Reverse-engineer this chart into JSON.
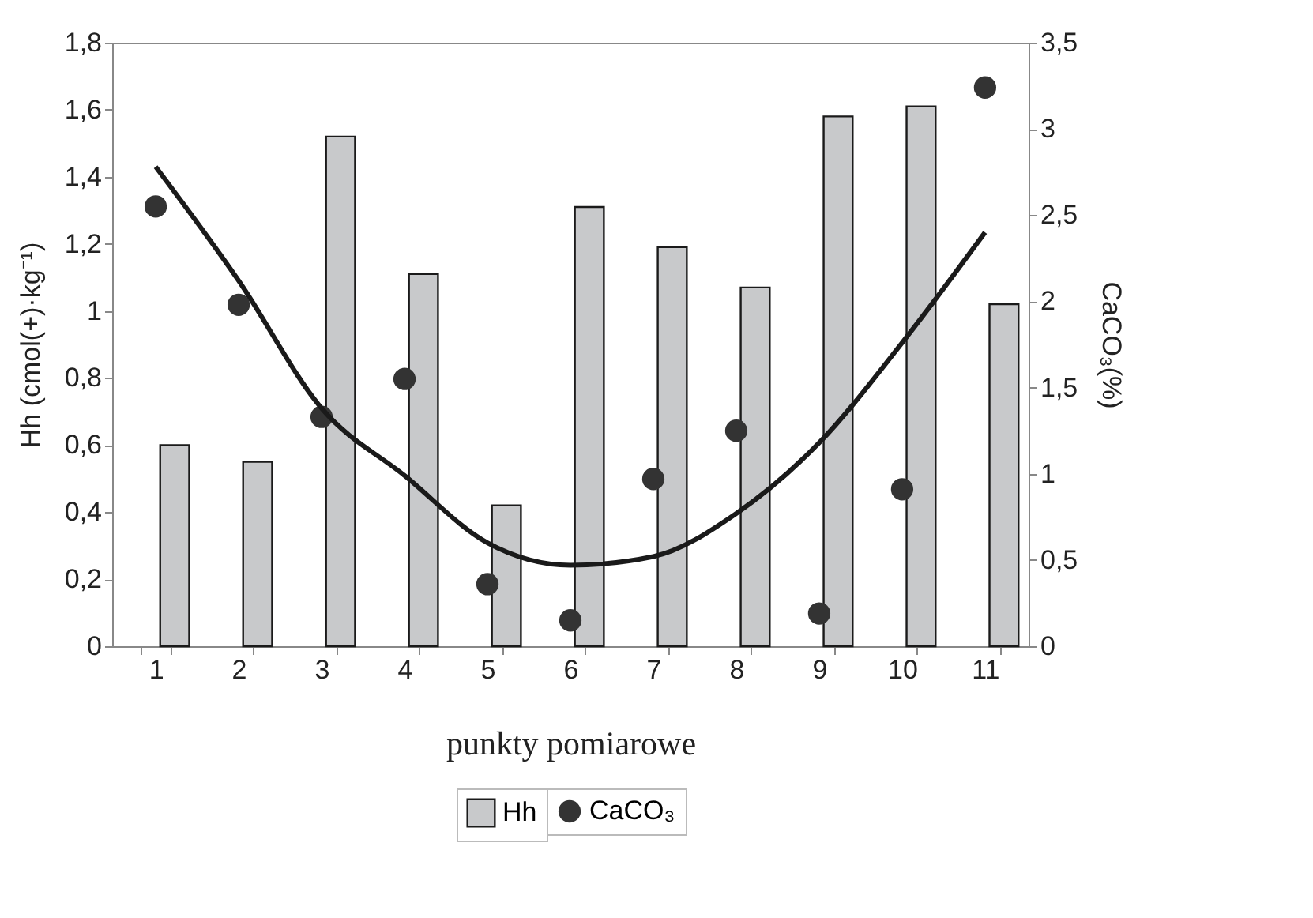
{
  "chart_data": {
    "type": "bar",
    "xlabel": "punkty pomiarowe",
    "ylabel": "Hh (cmol(+)·kg⁻¹)",
    "y2label": "CaCO₃(%)",
    "categories": [
      "1",
      "2",
      "3",
      "4",
      "5",
      "6",
      "7",
      "8",
      "9",
      "10",
      "11"
    ],
    "series": [
      {
        "name": "Hh",
        "color": "#c8c9cb",
        "values": [
          0.6,
          0.55,
          1.52,
          1.11,
          0.42,
          1.31,
          1.19,
          1.07,
          1.58,
          1.61,
          1.02
        ]
      },
      {
        "name": "CaCO₃",
        "type": "scatter",
        "axis": "y2",
        "marker": "circle",
        "color": "#333333",
        "values": [
          2.55,
          1.98,
          1.33,
          1.55,
          0.36,
          0.15,
          0.97,
          1.25,
          0.19,
          0.91,
          3.24
        ]
      },
      {
        "type": "line",
        "axis": "y2",
        "color": "#1a1a1a",
        "line_style": "solid",
        "values": [
          2.78,
          2.12,
          1.38,
          0.99,
          0.6,
          0.47,
          0.52,
          0.77,
          1.18,
          1.76,
          2.4
        ]
      }
    ],
    "ylim": [
      0,
      1.8
    ],
    "yticks": [
      0,
      {
        "value": 0.2,
        "label": "0,2"
      },
      {
        "value": 0.4,
        "label": "0,4"
      },
      {
        "value": 0.6,
        "label": "0,6"
      },
      {
        "value": 0.8,
        "label": "0,8"
      },
      1,
      {
        "value": 1.2,
        "label": "1,2"
      },
      {
        "value": 1.4,
        "label": "1,4"
      },
      {
        "value": 1.6,
        "label": "1,6"
      },
      {
        "value": 1.8,
        "label": "1,8"
      }
    ],
    "y2lim": [
      0,
      3.5
    ],
    "y2ticks": [
      0,
      {
        "value": 0.5,
        "label": "0,5"
      },
      1,
      {
        "value": 1.5,
        "label": "1,5"
      },
      2,
      {
        "value": 2.5,
        "label": "2,5"
      },
      3,
      {
        "value": 3.5,
        "label": "3,5"
      }
    ],
    "grid": false,
    "legend": "bottom"
  }
}
